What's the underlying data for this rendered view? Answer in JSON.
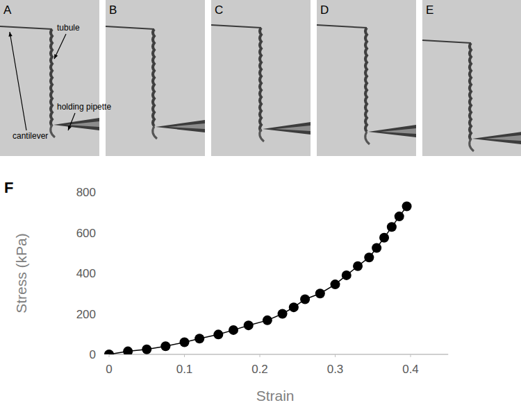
{
  "panels": [
    {
      "label": "A"
    },
    {
      "label": "B"
    },
    {
      "label": "C"
    },
    {
      "label": "D"
    },
    {
      "label": "E"
    }
  ],
  "annotations": [
    "tubule",
    "cantilever",
    "holding pipette"
  ],
  "chart_panel_label": "F",
  "chart_data": {
    "type": "line",
    "marker": "circle",
    "color": "#000000",
    "x_label": "Strain",
    "y_label": "Stress (kPa)",
    "x": [
      0,
      0.025,
      0.05,
      0.075,
      0.1,
      0.12,
      0.145,
      0.165,
      0.185,
      0.21,
      0.23,
      0.245,
      0.26,
      0.28,
      0.3,
      0.315,
      0.33,
      0.345,
      0.355,
      0.365,
      0.375,
      0.385,
      0.395
    ],
    "values": [
      0,
      15,
      25,
      40,
      60,
      78,
      98,
      120,
      143,
      168,
      200,
      232,
      272,
      300,
      345,
      390,
      435,
      478,
      525,
      575,
      628,
      680,
      730
    ],
    "xlim": [
      0,
      0.45
    ],
    "xticks": [
      0,
      0.1,
      0.2,
      0.3,
      0.4
    ],
    "ylim": [
      0,
      800
    ],
    "yticks": [
      0,
      200,
      400,
      600,
      800
    ],
    "grid": false
  }
}
